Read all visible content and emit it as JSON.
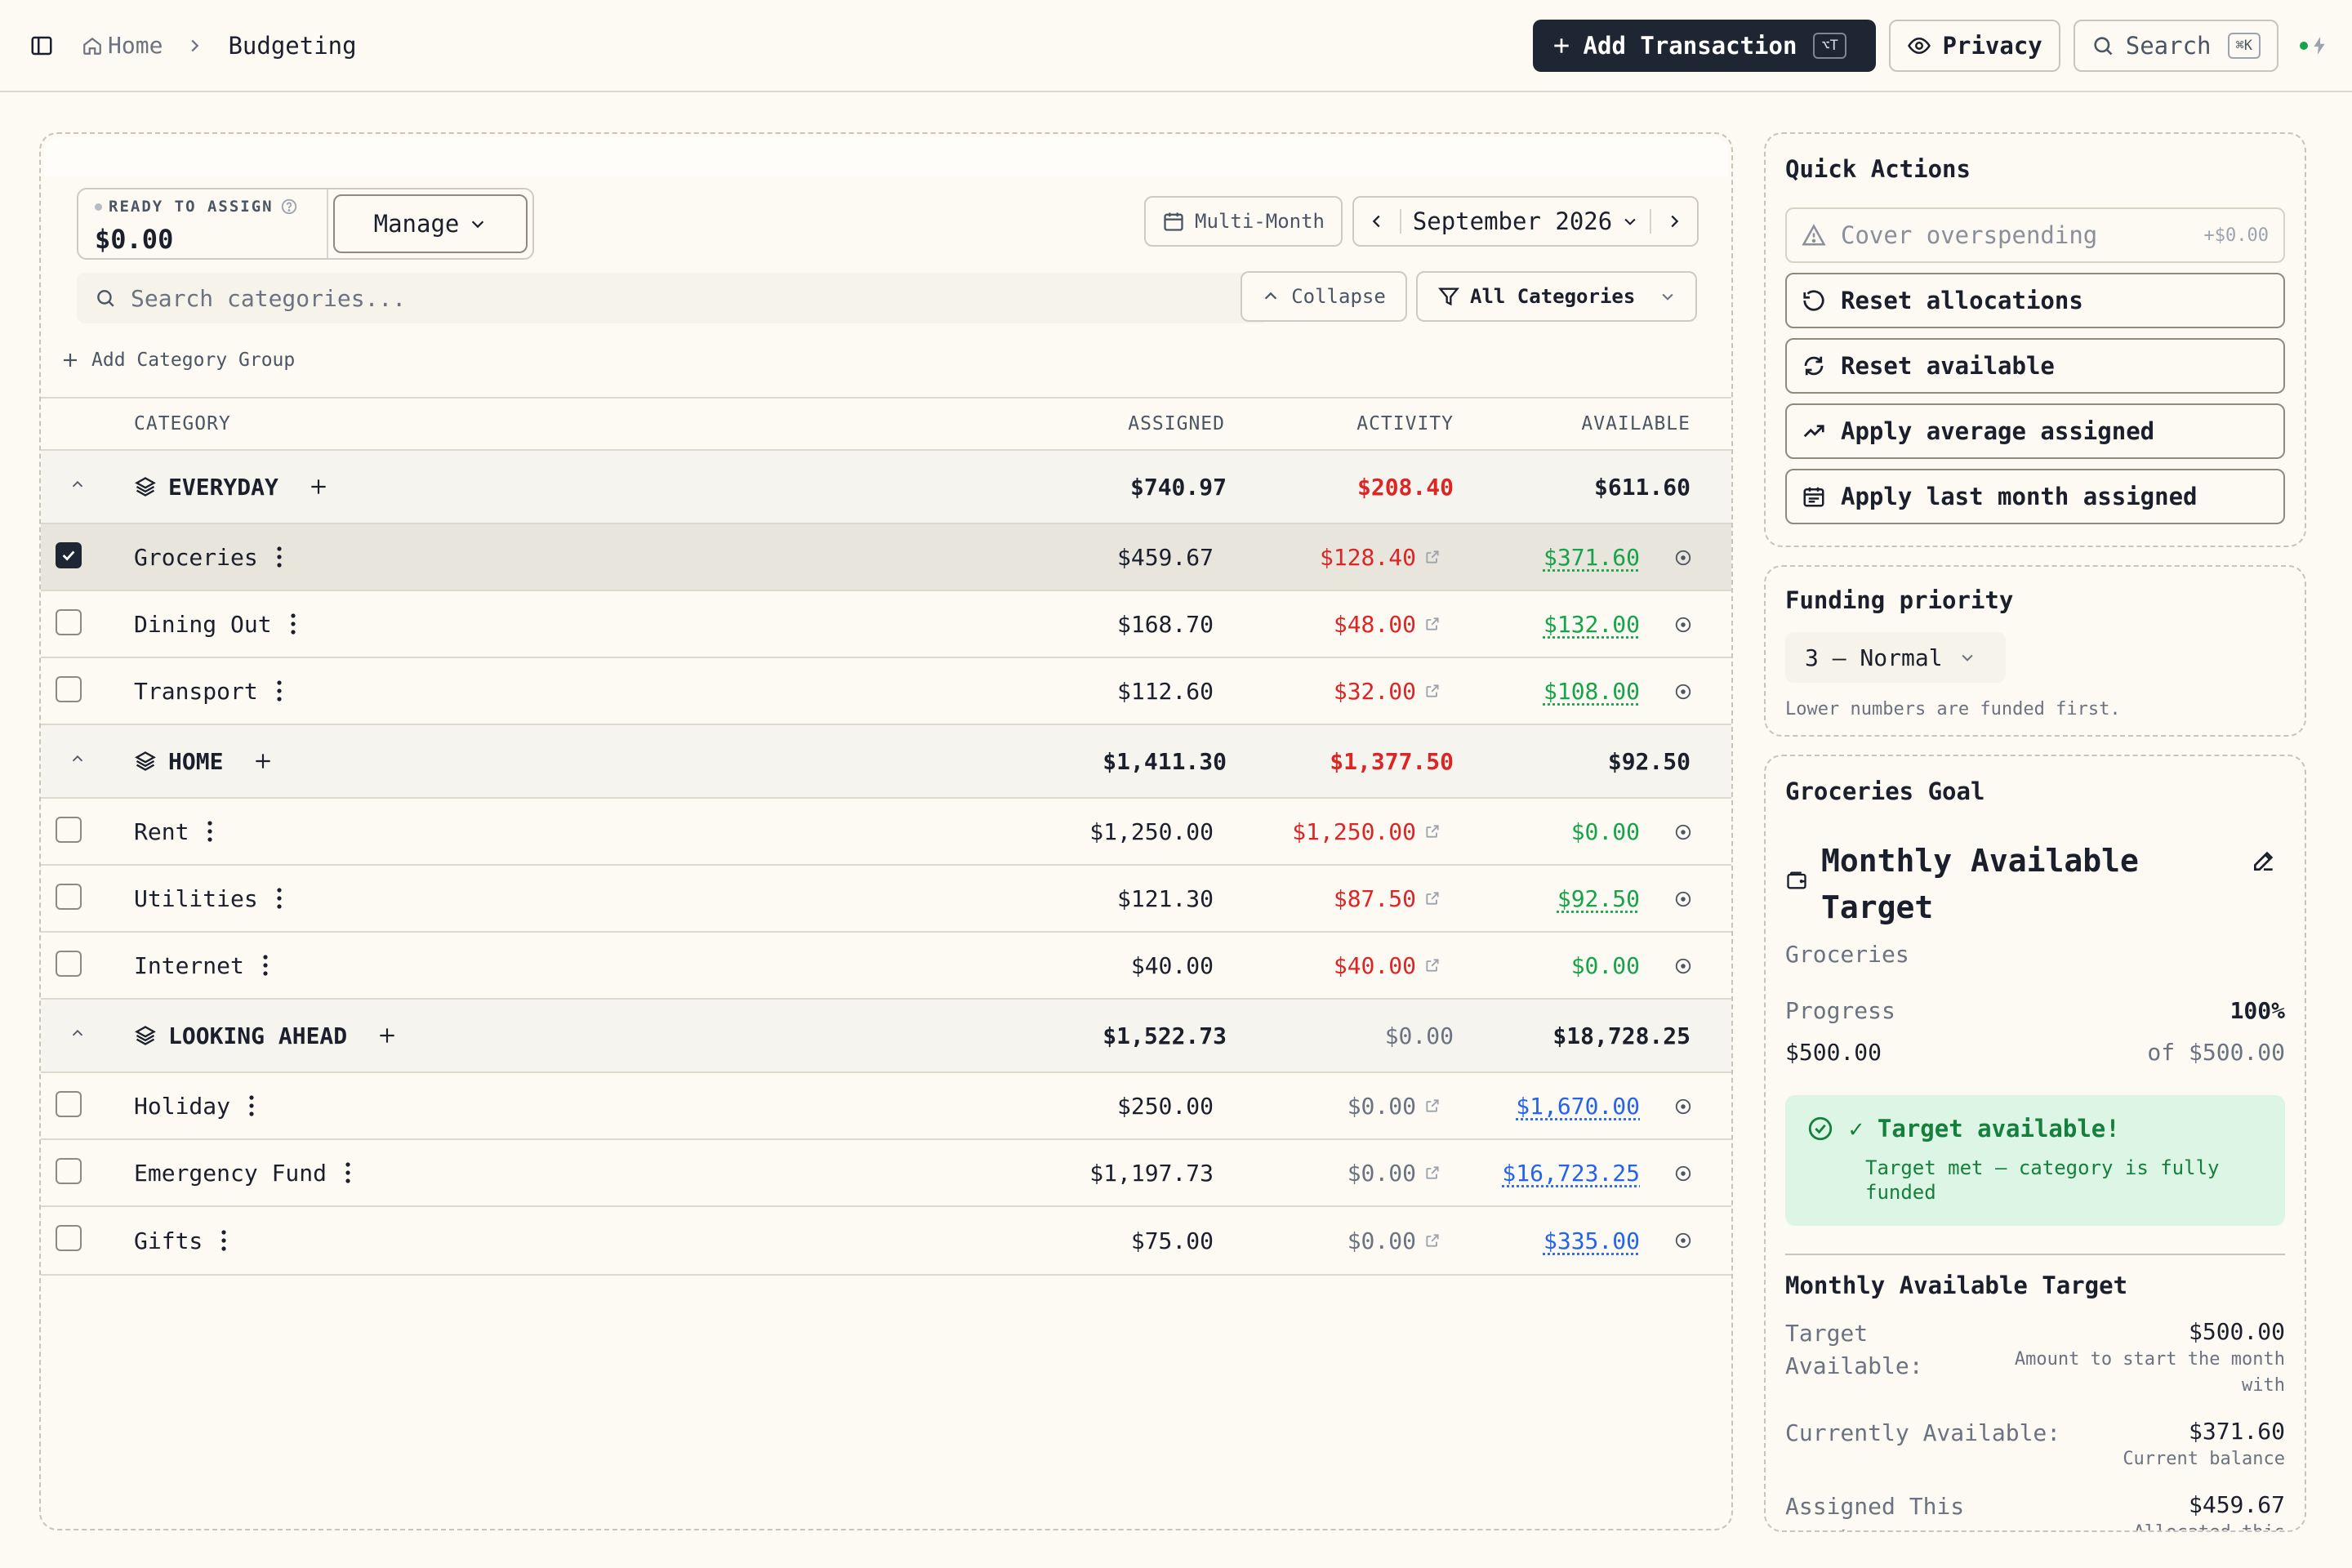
{
  "header": {
    "home_label": "Home",
    "current_page": "Budgeting",
    "add_transaction_label": "Add Transaction",
    "add_transaction_shortcut": "⌥T",
    "privacy_label": "Privacy",
    "search_label": "Search",
    "search_shortcut": "⌘K"
  },
  "budget": {
    "ready_label": "READY TO ASSIGN",
    "ready_amount": "$0.00",
    "manage_label": "Manage",
    "multi_month_label": "Multi-Month",
    "month_label": "September 2026",
    "search_placeholder": "Search categories...",
    "collapse_label": "Collapse",
    "filter_label": "All Categories",
    "add_group_label": "Add Category Group",
    "columns": {
      "category": "CATEGORY",
      "assigned": "ASSIGNED",
      "activity": "ACTIVITY",
      "available": "AVAILABLE"
    },
    "groups": [
      {
        "name": "EVERYDAY",
        "assigned": "$740.97",
        "activity": "$208.40",
        "available": "$611.60",
        "items": [
          {
            "name": "Groceries",
            "assigned": "$459.67",
            "activity": "$128.40",
            "available": "$371.60"
          },
          {
            "name": "Dining Out",
            "assigned": "$168.70",
            "activity": "$48.00",
            "available": "$132.00"
          },
          {
            "name": "Transport",
            "assigned": "$112.60",
            "activity": "$32.00",
            "available": "$108.00"
          }
        ]
      },
      {
        "name": "HOME",
        "assigned": "$1,411.30",
        "activity": "$1,377.50",
        "available": "$92.50",
        "items": [
          {
            "name": "Rent",
            "assigned": "$1,250.00",
            "activity": "$1,250.00",
            "available": "$0.00"
          },
          {
            "name": "Utilities",
            "assigned": "$121.30",
            "activity": "$87.50",
            "available": "$92.50"
          },
          {
            "name": "Internet",
            "assigned": "$40.00",
            "activity": "$40.00",
            "available": "$0.00"
          }
        ]
      },
      {
        "name": "LOOKING AHEAD",
        "assigned": "$1,522.73",
        "activity": "$0.00",
        "available": "$18,728.25",
        "items": [
          {
            "name": "Holiday",
            "assigned": "$250.00",
            "activity": "$0.00",
            "available": "$1,670.00"
          },
          {
            "name": "Emergency Fund",
            "assigned": "$1,197.73",
            "activity": "$0.00",
            "available": "$16,723.25"
          },
          {
            "name": "Gifts",
            "assigned": "$75.00",
            "activity": "$0.00",
            "available": "$335.00"
          }
        ]
      }
    ]
  },
  "quick_actions": {
    "title": "Quick Actions",
    "cover_label": "Cover overspending",
    "cover_amount": "+$0.00",
    "reset_allocations": "Reset allocations",
    "reset_available": "Reset available",
    "apply_average": "Apply average assigned",
    "apply_last_month": "Apply last month assigned"
  },
  "funding": {
    "title": "Funding priority",
    "value": "3 — Normal",
    "note": "Lower numbers are funded first."
  },
  "goal": {
    "title": "Groceries Goal",
    "goal_name": "Monthly Available Target",
    "category": "Groceries",
    "progress_label": "Progress",
    "progress_pct": "100%",
    "current": "$500.00",
    "of_target": "of $500.00",
    "banner_title": "✓ Target available!",
    "banner_sub": "Target met — category is fully funded",
    "section_title": "Monthly Available Target",
    "target_label": "Target Available:",
    "target_value": "$500.00",
    "target_desc": "Amount to start the month with",
    "current_label": "Currently Available:",
    "current_value": "$371.60",
    "current_desc": "Current balance",
    "assigned_label": "Assigned This Month:",
    "assigned_value": "$459.67",
    "assigned_desc": "Allocated this month"
  }
}
